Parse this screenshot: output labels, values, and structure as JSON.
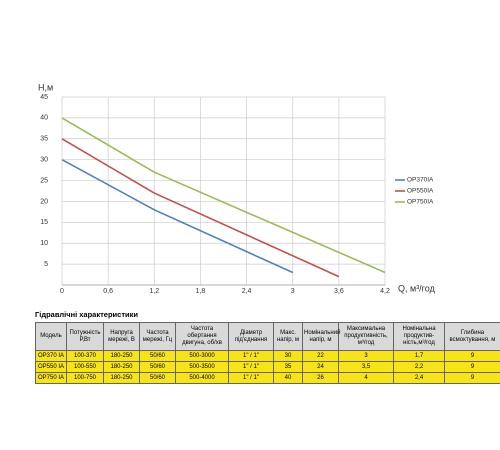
{
  "chart_data": {
    "type": "line",
    "y_label": "H,м",
    "x_label": "Q,  м³/год",
    "xlim": [
      0,
      4.2
    ],
    "ylim": [
      0,
      45
    ],
    "xticks": [
      0,
      {
        "value": 0.6,
        "label": "0,6"
      },
      {
        "value": 1.2,
        "label": "1,2"
      },
      {
        "value": 1.8,
        "label": "1,8"
      },
      {
        "value": 2.4,
        "label": "2,4"
      },
      3,
      {
        "value": 3.6,
        "label": "3,6"
      },
      {
        "value": 4.2,
        "label": "4,2"
      }
    ],
    "yticks": [
      5,
      10,
      15,
      20,
      25,
      30,
      35,
      40,
      45
    ],
    "grid": true,
    "series": [
      {
        "name": "OP370IA",
        "color": "#4f81bd",
        "x": [
          0,
          1.2,
          3
        ],
        "values": [
          30,
          18,
          3
        ]
      },
      {
        "name": "OP550IA",
        "color": "#c0504d",
        "x": [
          0,
          1.2,
          3.6
        ],
        "values": [
          35,
          22,
          2
        ]
      },
      {
        "name": "OP750IA",
        "color": "#9bbb59",
        "x": [
          0,
          1.2,
          4.2
        ],
        "values": [
          40,
          27,
          3
        ]
      }
    ]
  },
  "table": {
    "title": "Гідравлічні характеристики",
    "header": [
      "Модель",
      "Потужність Р,Вт",
      "Напруга мережі, В",
      "Частота мережі, Гц",
      "Частота обертання двигуна, об/хв",
      "Діаметр під'єднання",
      "Макс. напір, м",
      "Номінальний напір, м",
      "Максимальна продуктивність, м³/год",
      "Номінальна продуктив-ність,м³/год",
      "Глибина всмоктування, м"
    ],
    "rows": [
      [
        "OP370 IA",
        "100-370",
        "180-250",
        "50/60",
        "500-3000",
        "1\" / 1\"",
        "30",
        "22",
        "3",
        "1,7",
        "9"
      ],
      [
        "OP550 IA",
        "100-550",
        "180-250",
        "50/60",
        "500-3500",
        "1\" / 1\"",
        "35",
        "24",
        "3,5",
        "2,2",
        "9"
      ],
      [
        "OP750 IA",
        "100-750",
        "180-250",
        "50/60",
        "500-4000",
        "1\" / 1\"",
        "40",
        "26",
        "4",
        "2,4",
        "9"
      ]
    ]
  }
}
